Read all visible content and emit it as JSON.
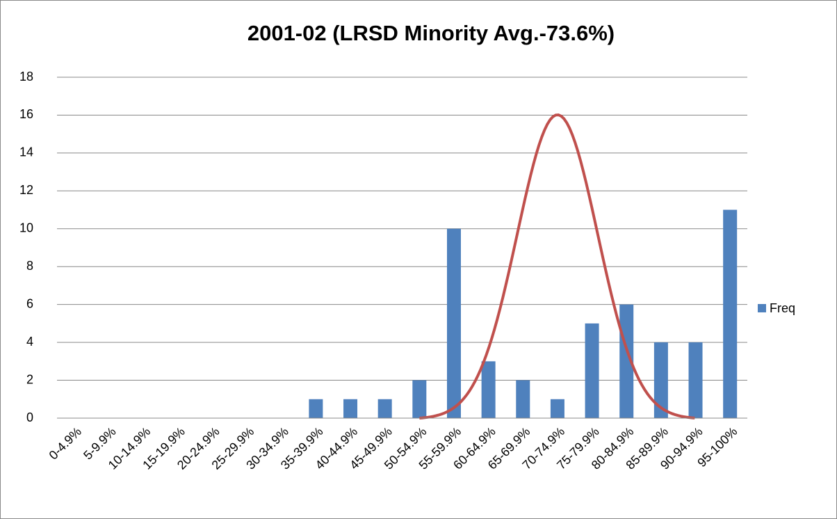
{
  "chart_data": {
    "type": "bar",
    "title": "2001-02 (LRSD Minority Avg.-73.6%)",
    "categories": [
      "0-4.9%",
      "5-9.9%",
      "10-14.9%",
      "15-19.9%",
      "20-24.9%",
      "25-29.9%",
      "30-34.9%",
      "35-39.9%",
      "40-44.9%",
      "45-49.9%",
      "50-54.9%",
      "55-59.9%",
      "60-64.9%",
      "65-69.9%",
      "70-74.9%",
      "75-79.9%",
      "80-84.9%",
      "85-89.9%",
      "90-94.9%",
      "95-100%"
    ],
    "series": [
      {
        "name": "Freq",
        "color": "#4f81bd",
        "values": [
          0,
          0,
          0,
          0,
          0,
          0,
          0,
          1,
          1,
          1,
          2,
          10,
          3,
          2,
          1,
          5,
          6,
          4,
          4,
          11
        ]
      }
    ],
    "ylim": [
      0,
      18
    ],
    "yticks": [
      0,
      2,
      4,
      6,
      8,
      10,
      12,
      14,
      16,
      18
    ],
    "grid": true,
    "legend": "right"
  }
}
